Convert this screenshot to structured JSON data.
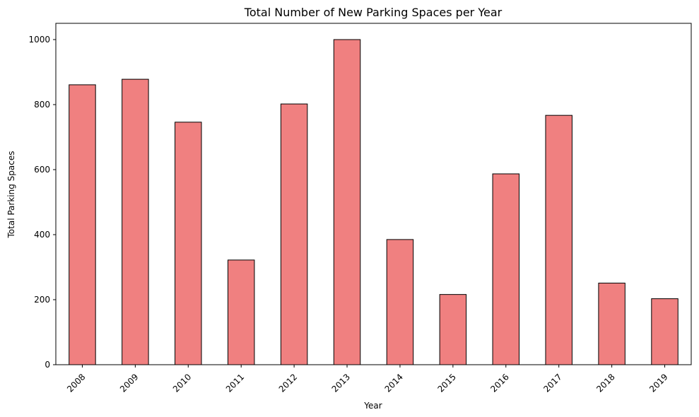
{
  "chart_data": {
    "type": "bar",
    "title": "Total Number of New Parking Spaces per Year",
    "xlabel": "Year",
    "ylabel": "Total Parking Spaces",
    "categories": [
      "2008",
      "2009",
      "2010",
      "2011",
      "2012",
      "2013",
      "2014",
      "2015",
      "2016",
      "2017",
      "2018",
      "2019"
    ],
    "values": [
      861,
      878,
      746,
      322,
      802,
      1000,
      385,
      216,
      587,
      767,
      251,
      203
    ],
    "ylim": [
      0,
      1050
    ],
    "yticks": [
      0,
      200,
      400,
      600,
      800,
      1000
    ],
    "grid": false,
    "legend": "none",
    "bar_color": "#f08080",
    "edge_color": "#000000",
    "x_tick_rotation": -45
  }
}
